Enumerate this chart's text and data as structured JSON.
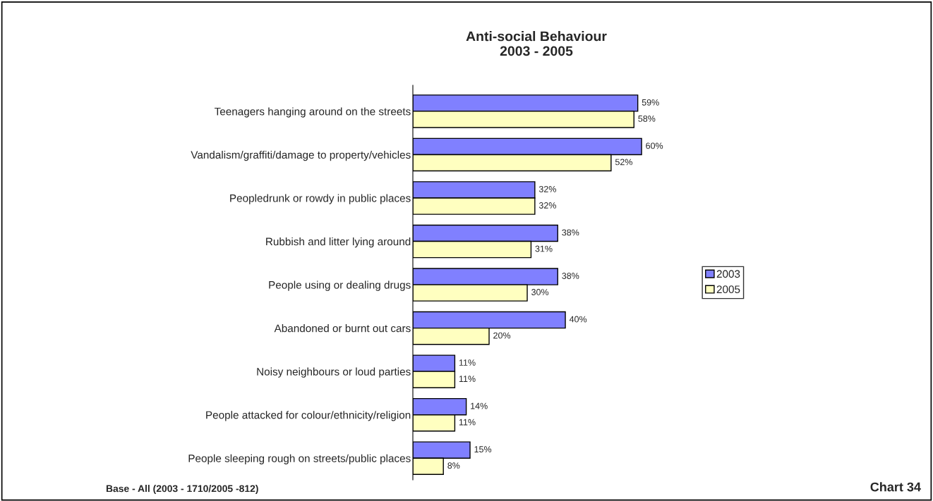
{
  "chart_data": {
    "type": "bar",
    "orientation": "horizontal",
    "title": "Anti-social Behaviour\n2003 - 2005",
    "categories": [
      "Teenagers hanging around on the streets",
      "Vandalism/graffiti/damage to property/vehicles",
      "Peopledrunk or rowdy in public places",
      "Rubbish and litter lying around",
      "People using or dealing drugs",
      "Abandoned or burnt out cars",
      "Noisy neighbours or loud parties",
      "People attacked for colour/ethnicity/religion",
      "People sleeping rough on streets/public places"
    ],
    "series": [
      {
        "name": "2003",
        "color": "#8080ff",
        "values": [
          59,
          60,
          32,
          38,
          38,
          40,
          11,
          14,
          15
        ],
        "value_labels": [
          "59%",
          "60%",
          "32%",
          "38%",
          "38%",
          "40%",
          "11%",
          "14%",
          "15%"
        ]
      },
      {
        "name": "2005",
        "color": "#ffffc0",
        "values": [
          58,
          52,
          32,
          31,
          30,
          20,
          11,
          11,
          8
        ],
        "value_labels": [
          "58%",
          "52%",
          "32%",
          "31%",
          "30%",
          "20%",
          "11%",
          "11%",
          "8%"
        ]
      }
    ],
    "legend": "right",
    "grid": false,
    "annotations": [
      "Base - All (2003 - 1710/2005 -812)",
      "Chart 34"
    ]
  }
}
